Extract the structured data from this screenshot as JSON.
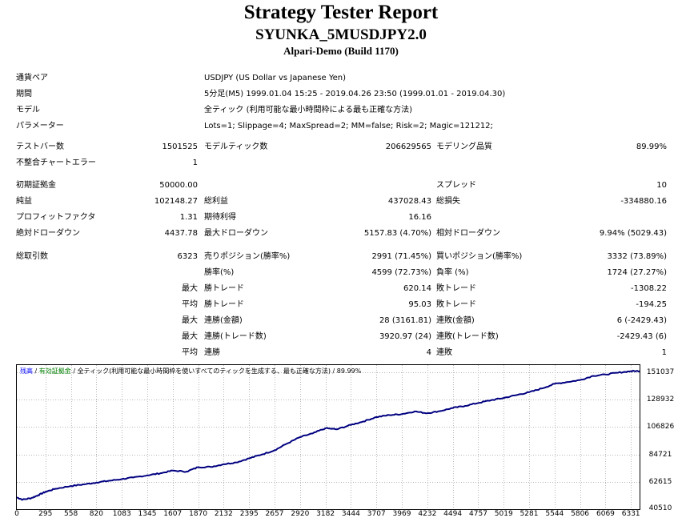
{
  "report": {
    "title": "Strategy Tester Report",
    "ea_name": "SYUNKA_5MUSDJPY2.0",
    "server": "Alpari-Demo (Build 1170)"
  },
  "info": {
    "symbol_label": "通貨ペア",
    "symbol_value": "USDJPY (US Dollar vs Japanese Yen)",
    "period_label": "期間",
    "period_value": "5分足(M5) 1999.01.04 15:25 - 2019.04.26 23:50 (1999.01.01 - 2019.04.30)",
    "model_label": "モデル",
    "model_value": "全ティック (利用可能な最小時間枠による最も正確な方法)",
    "params_label": "パラメーター",
    "params_value": "Lots=1; Slippage=4; MaxSpread=2; MM=false; Risk=2; Magic=121212;"
  },
  "stats": {
    "bars_label": "テストバー数",
    "bars_value": "1501525",
    "ticks_label": "モデルティック数",
    "ticks_value": "206629565",
    "quality_label": "モデリング品質",
    "quality_value": "89.99%",
    "errors_label": "不整合チャートエラー",
    "errors_value": "1",
    "deposit_label": "初期証拠金",
    "deposit_value": "50000.00",
    "spread_label": "スプレッド",
    "spread_value": "10",
    "net_label": "純益",
    "net_value": "102148.27",
    "gross_profit_label": "総利益",
    "gross_profit_value": "437028.43",
    "gross_loss_label": "総損失",
    "gross_loss_value": "-334880.16",
    "pf_label": "プロフィットファクタ",
    "pf_value": "1.31",
    "expected_label": "期待利得",
    "expected_value": "16.16",
    "abs_dd_label": "絶対ドローダウン",
    "abs_dd_value": "4437.78",
    "max_dd_label": "最大ドローダウン",
    "max_dd_value": "5157.83 (4.70%)",
    "rel_dd_label": "相対ドローダウン",
    "rel_dd_value": "9.94% (5029.43)",
    "total_trades_label": "総取引数",
    "total_trades_value": "6323",
    "short_label": "売りポジション(勝率%)",
    "short_value": "2991 (71.45%)",
    "long_label": "買いポジション(勝率%)",
    "long_value": "3332 (73.89%)",
    "win_rate_label": "勝率(%)",
    "win_rate_value": "4599 (72.73%)",
    "loss_rate_label": "負率 (%)",
    "loss_rate_value": "1724 (27.27%)",
    "max_label": "最大",
    "avg_label": "平均",
    "largest_win_label": "勝トレード",
    "largest_win_value": "620.14",
    "largest_loss_label": "敗トレード",
    "largest_loss_value": "-1308.22",
    "avg_win_label": "勝トレード",
    "avg_win_value": "95.03",
    "avg_loss_label": "敗トレード",
    "avg_loss_value": "-194.25",
    "max_consec_win_label": "連勝(金額)",
    "max_consec_win_value": "28 (3161.81)",
    "max_consec_loss_label": "連敗(金額)",
    "max_consec_loss_value": "6 (-2429.43)",
    "max_consec_profit_label": "連勝(トレード数)",
    "max_consec_profit_value": "3920.97 (24)",
    "max_consec_lossamt_label": "連敗(トレード数)",
    "max_consec_lossamt_value": "-2429.43 (6)",
    "avg_consec_win_label": "連勝",
    "avg_consec_win_value": "4",
    "avg_consec_loss_label": "連敗",
    "avg_consec_loss_value": "1"
  },
  "chart_legend": {
    "balance": "残高",
    "separator1": " / ",
    "equity": "有効証拠金",
    "separator2": " / ",
    "rest": "全ティック(利用可能な最小時間枠を使いすべてのティックを生成する、最も正確な方法) / 89.99%"
  },
  "chart_colors": {
    "balance": "#000080",
    "balance_legend": "#0000ff",
    "equity_legend": "#008000",
    "grid": "#b8b8b8"
  },
  "chart_data": {
    "type": "line",
    "title": "",
    "xlabel": "",
    "ylabel": "",
    "x_ticks": [
      0,
      295,
      558,
      820,
      1083,
      1345,
      1607,
      1870,
      2132,
      2395,
      2657,
      2920,
      3182,
      3444,
      3707,
      3969,
      4232,
      4494,
      4757,
      5019,
      5281,
      5544,
      5806,
      6069,
      6331
    ],
    "y_ticks": [
      40510,
      62615,
      84721,
      106826,
      128932,
      151037
    ],
    "xlim": [
      0,
      6420
    ],
    "ylim": [
      40510,
      156700
    ],
    "grid": true,
    "series": [
      {
        "name": "残高",
        "x": [
          0,
          60,
          150,
          220,
          295,
          400,
          558,
          700,
          820,
          950,
          1083,
          1200,
          1345,
          1480,
          1607,
          1750,
          1870,
          2000,
          2132,
          2260,
          2395,
          2520,
          2657,
          2780,
          2920,
          3050,
          3182,
          3300,
          3444,
          3570,
          3707,
          3840,
          3969,
          4100,
          4232,
          4360,
          4494,
          4620,
          4757,
          4890,
          5019,
          5150,
          5281,
          5410,
          5544,
          5680,
          5806,
          5940,
          6069,
          6200,
          6331,
          6420
        ],
        "values": [
          50000,
          48200,
          49500,
          51800,
          54500,
          57000,
          59200,
          60600,
          62000,
          63400,
          64800,
          66000,
          67800,
          69500,
          71600,
          70800,
          74400,
          74600,
          76800,
          78200,
          81500,
          84500,
          88000,
          93200,
          98600,
          101600,
          105800,
          104900,
          108500,
          111200,
          114800,
          116400,
          117200,
          119300,
          117900,
          119600,
          122100,
          123800,
          126200,
          128400,
          130200,
          132500,
          134800,
          137800,
          141600,
          143100,
          144600,
          148000,
          149100,
          150600,
          151800,
          151900
        ]
      }
    ]
  }
}
